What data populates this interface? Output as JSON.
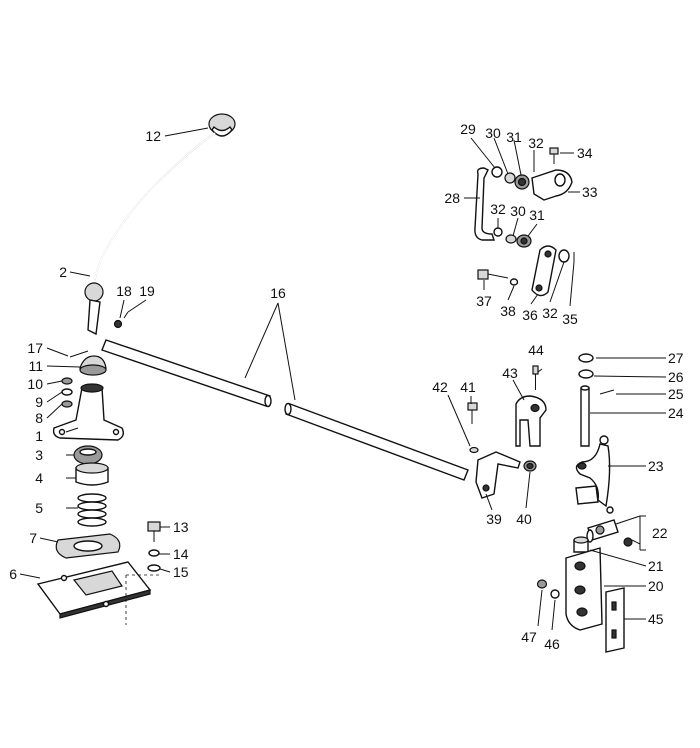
{
  "diagram": {
    "type": "exploded-parts-view",
    "callouts": [
      {
        "id": "c1",
        "label": "1"
      },
      {
        "id": "c2",
        "label": "2"
      },
      {
        "id": "c3",
        "label": "3"
      },
      {
        "id": "c4",
        "label": "4"
      },
      {
        "id": "c5",
        "label": "5"
      },
      {
        "id": "c6",
        "label": "6"
      },
      {
        "id": "c7",
        "label": "7"
      },
      {
        "id": "c8",
        "label": "8"
      },
      {
        "id": "c9",
        "label": "9"
      },
      {
        "id": "c10",
        "label": "10"
      },
      {
        "id": "c11",
        "label": "11"
      },
      {
        "id": "c12",
        "label": "12"
      },
      {
        "id": "c13",
        "label": "13"
      },
      {
        "id": "c14",
        "label": "14"
      },
      {
        "id": "c15",
        "label": "15"
      },
      {
        "id": "c16",
        "label": "16"
      },
      {
        "id": "c17",
        "label": "17"
      },
      {
        "id": "c18",
        "label": "18"
      },
      {
        "id": "c19",
        "label": "19"
      },
      {
        "id": "c20",
        "label": "20"
      },
      {
        "id": "c21",
        "label": "21"
      },
      {
        "id": "c22",
        "label": "22"
      },
      {
        "id": "c23",
        "label": "23"
      },
      {
        "id": "c24",
        "label": "24"
      },
      {
        "id": "c25",
        "label": "25"
      },
      {
        "id": "c26",
        "label": "26"
      },
      {
        "id": "c27",
        "label": "27"
      },
      {
        "id": "c28",
        "label": "28"
      },
      {
        "id": "c29",
        "label": "29"
      },
      {
        "id": "c30a",
        "label": "30"
      },
      {
        "id": "c31a",
        "label": "31"
      },
      {
        "id": "c32a",
        "label": "32"
      },
      {
        "id": "c34",
        "label": "34"
      },
      {
        "id": "c33",
        "label": "33"
      },
      {
        "id": "c32b",
        "label": "32"
      },
      {
        "id": "c30b",
        "label": "30"
      },
      {
        "id": "c31b",
        "label": "31"
      },
      {
        "id": "c37",
        "label": "37"
      },
      {
        "id": "c38",
        "label": "38"
      },
      {
        "id": "c36",
        "label": "36"
      },
      {
        "id": "c32c",
        "label": "32"
      },
      {
        "id": "c35",
        "label": "35"
      },
      {
        "id": "c39",
        "label": "39"
      },
      {
        "id": "c40",
        "label": "40"
      },
      {
        "id": "c41",
        "label": "41"
      },
      {
        "id": "c42",
        "label": "42"
      },
      {
        "id": "c43",
        "label": "43"
      },
      {
        "id": "c44",
        "label": "44"
      },
      {
        "id": "c45",
        "label": "45"
      },
      {
        "id": "c46",
        "label": "46"
      },
      {
        "id": "c47",
        "label": "47"
      }
    ]
  }
}
